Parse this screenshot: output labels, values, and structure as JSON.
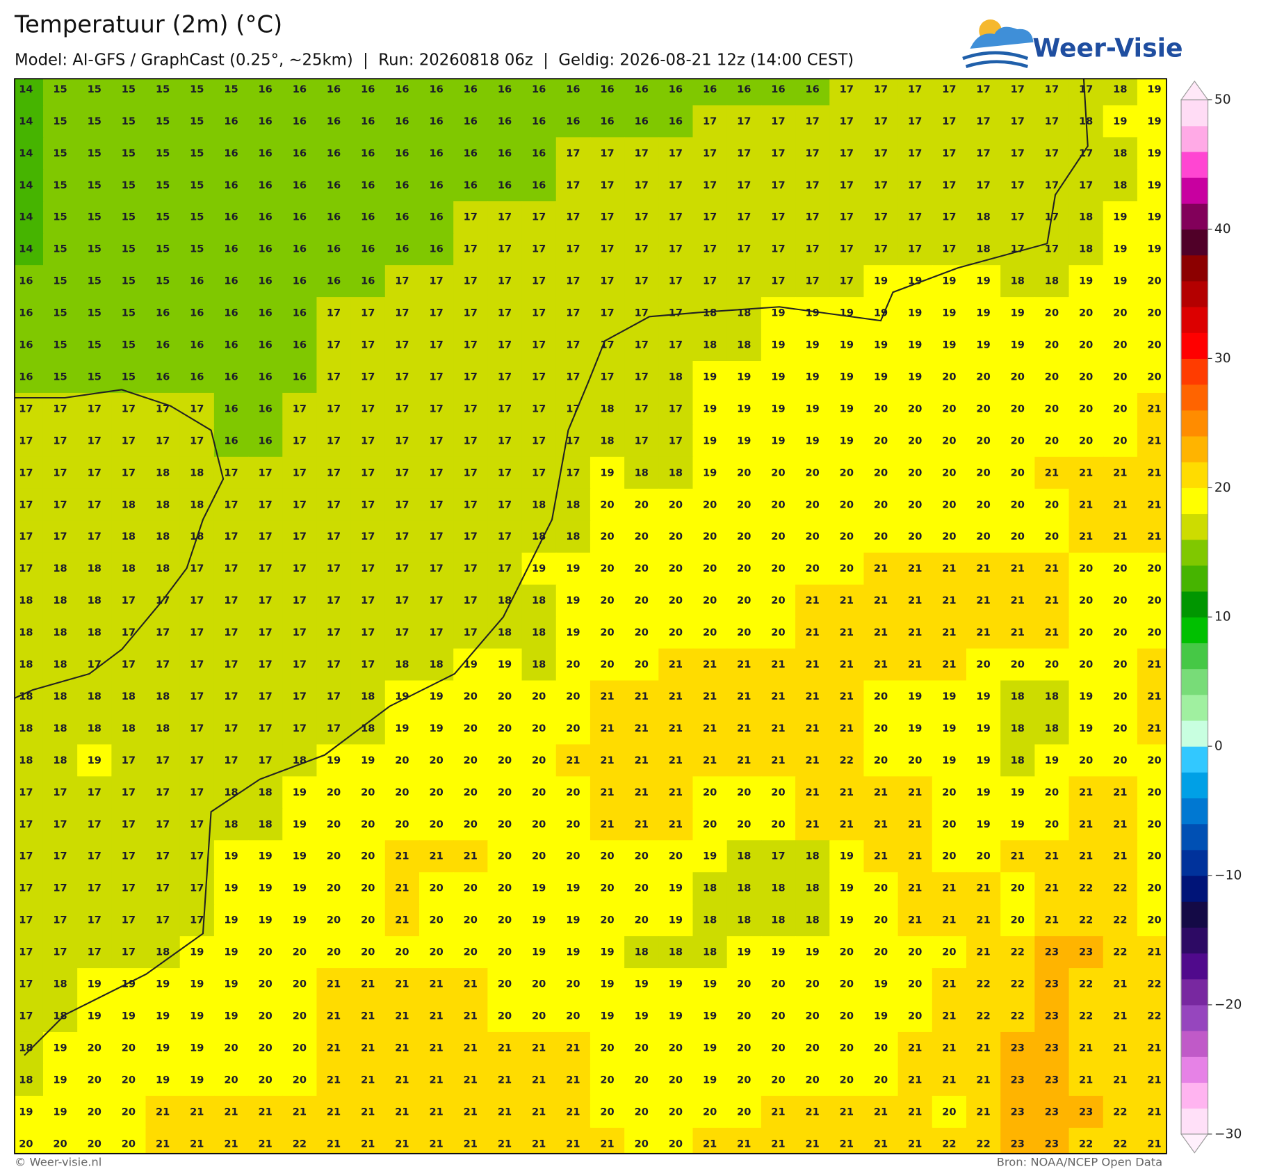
{
  "header": {
    "title": "Temperatuur (2m) (°C)",
    "subtitle": "Model: AI-GFS / GraphCast (0.25°, ~25km)  |  Run: 20260818 06z  |  Geldig: 2026-08-21 12z (14:00 CEST)",
    "logo": "Weer-Visie"
  },
  "map": {
    "grid": [
      [
        14,
        15,
        15,
        15,
        15,
        15,
        15,
        16,
        16,
        16,
        16,
        16,
        16,
        16,
        16,
        16,
        16,
        16,
        16,
        16,
        16,
        16,
        16,
        16,
        17,
        17,
        17,
        17,
        17,
        17,
        17,
        17,
        18,
        19
      ],
      [
        14,
        15,
        15,
        15,
        15,
        15,
        16,
        16,
        16,
        16,
        16,
        16,
        16,
        16,
        16,
        16,
        16,
        16,
        16,
        16,
        17,
        17,
        17,
        17,
        17,
        17,
        17,
        17,
        17,
        17,
        17,
        18,
        19,
        19
      ],
      [
        14,
        15,
        15,
        15,
        15,
        15,
        16,
        16,
        16,
        16,
        16,
        16,
        16,
        16,
        16,
        16,
        17,
        17,
        17,
        17,
        17,
        17,
        17,
        17,
        17,
        17,
        17,
        17,
        17,
        17,
        17,
        17,
        18,
        19
      ],
      [
        14,
        15,
        15,
        15,
        15,
        15,
        16,
        16,
        16,
        16,
        16,
        16,
        16,
        16,
        16,
        16,
        17,
        17,
        17,
        17,
        17,
        17,
        17,
        17,
        17,
        17,
        17,
        17,
        17,
        17,
        17,
        17,
        18,
        19
      ],
      [
        14,
        15,
        15,
        15,
        15,
        15,
        16,
        16,
        16,
        16,
        16,
        16,
        16,
        17,
        17,
        17,
        17,
        17,
        17,
        17,
        17,
        17,
        17,
        17,
        17,
        17,
        17,
        17,
        18,
        17,
        17,
        18,
        19,
        19
      ],
      [
        14,
        15,
        15,
        15,
        15,
        15,
        16,
        16,
        16,
        16,
        16,
        16,
        16,
        17,
        17,
        17,
        17,
        17,
        17,
        17,
        17,
        17,
        17,
        17,
        17,
        17,
        17,
        17,
        18,
        17,
        17,
        18,
        19,
        19
      ],
      [
        16,
        15,
        15,
        15,
        15,
        16,
        16,
        16,
        16,
        16,
        16,
        17,
        17,
        17,
        17,
        17,
        17,
        17,
        17,
        17,
        17,
        17,
        17,
        17,
        17,
        19,
        19,
        19,
        19,
        18,
        18,
        19,
        19,
        20
      ],
      [
        16,
        15,
        15,
        15,
        16,
        16,
        16,
        16,
        16,
        17,
        17,
        17,
        17,
        17,
        17,
        17,
        17,
        17,
        17,
        17,
        18,
        18,
        19,
        19,
        19,
        19,
        19,
        19,
        19,
        19,
        20,
        20,
        20,
        20
      ],
      [
        16,
        15,
        15,
        15,
        16,
        16,
        16,
        16,
        16,
        17,
        17,
        17,
        17,
        17,
        17,
        17,
        17,
        17,
        17,
        17,
        18,
        18,
        19,
        19,
        19,
        19,
        19,
        19,
        19,
        19,
        20,
        20,
        20,
        20
      ],
      [
        16,
        15,
        15,
        15,
        16,
        16,
        16,
        16,
        16,
        17,
        17,
        17,
        17,
        17,
        17,
        17,
        17,
        17,
        17,
        18,
        19,
        19,
        19,
        19,
        19,
        19,
        19,
        20,
        20,
        20,
        20,
        20,
        20,
        20
      ],
      [
        17,
        17,
        17,
        17,
        17,
        17,
        16,
        16,
        17,
        17,
        17,
        17,
        17,
        17,
        17,
        17,
        17,
        18,
        17,
        17,
        19,
        19,
        19,
        19,
        19,
        20,
        20,
        20,
        20,
        20,
        20,
        20,
        20,
        21
      ],
      [
        17,
        17,
        17,
        17,
        17,
        17,
        16,
        16,
        17,
        17,
        17,
        17,
        17,
        17,
        17,
        17,
        17,
        18,
        17,
        17,
        19,
        19,
        19,
        19,
        19,
        20,
        20,
        20,
        20,
        20,
        20,
        20,
        20,
        21
      ],
      [
        17,
        17,
        17,
        17,
        18,
        18,
        17,
        17,
        17,
        17,
        17,
        17,
        17,
        17,
        17,
        17,
        17,
        19,
        18,
        18,
        19,
        20,
        20,
        20,
        20,
        20,
        20,
        20,
        20,
        20,
        21,
        21,
        21,
        21
      ],
      [
        17,
        17,
        17,
        18,
        18,
        18,
        17,
        17,
        17,
        17,
        17,
        17,
        17,
        17,
        17,
        18,
        18,
        20,
        20,
        20,
        20,
        20,
        20,
        20,
        20,
        20,
        20,
        20,
        20,
        20,
        20,
        21,
        21,
        21
      ],
      [
        17,
        17,
        17,
        18,
        18,
        18,
        17,
        17,
        17,
        17,
        17,
        17,
        17,
        17,
        17,
        18,
        18,
        20,
        20,
        20,
        20,
        20,
        20,
        20,
        20,
        20,
        20,
        20,
        20,
        20,
        20,
        21,
        21,
        21
      ],
      [
        17,
        18,
        18,
        18,
        18,
        17,
        17,
        17,
        17,
        17,
        17,
        17,
        17,
        17,
        17,
        19,
        19,
        20,
        20,
        20,
        20,
        20,
        20,
        20,
        20,
        21,
        21,
        21,
        21,
        21,
        21,
        20,
        20,
        20
      ],
      [
        18,
        18,
        18,
        17,
        17,
        17,
        17,
        17,
        17,
        17,
        17,
        17,
        17,
        17,
        18,
        18,
        19,
        20,
        20,
        20,
        20,
        20,
        20,
        21,
        21,
        21,
        21,
        21,
        21,
        21,
        21,
        20,
        20,
        20
      ],
      [
        18,
        18,
        18,
        17,
        17,
        17,
        17,
        17,
        17,
        17,
        17,
        17,
        17,
        17,
        18,
        18,
        19,
        20,
        20,
        20,
        20,
        20,
        20,
        21,
        21,
        21,
        21,
        21,
        21,
        21,
        21,
        20,
        20,
        20
      ],
      [
        18,
        18,
        17,
        17,
        17,
        17,
        17,
        17,
        17,
        17,
        17,
        18,
        18,
        19,
        19,
        18,
        20,
        20,
        20,
        21,
        21,
        21,
        21,
        21,
        21,
        21,
        21,
        21,
        20,
        20,
        20,
        20,
        20,
        21
      ],
      [
        18,
        18,
        18,
        18,
        18,
        17,
        17,
        17,
        17,
        17,
        18,
        19,
        19,
        20,
        20,
        20,
        20,
        21,
        21,
        21,
        21,
        21,
        21,
        21,
        21,
        20,
        19,
        19,
        19,
        18,
        18,
        19,
        20,
        21
      ],
      [
        18,
        18,
        18,
        18,
        18,
        17,
        17,
        17,
        17,
        17,
        18,
        19,
        19,
        20,
        20,
        20,
        20,
        21,
        21,
        21,
        21,
        21,
        21,
        21,
        21,
        20,
        19,
        19,
        19,
        18,
        18,
        19,
        20,
        21
      ],
      [
        18,
        18,
        19,
        17,
        17,
        17,
        17,
        17,
        18,
        19,
        19,
        20,
        20,
        20,
        20,
        20,
        21,
        21,
        21,
        21,
        21,
        21,
        21,
        21,
        22,
        20,
        20,
        19,
        19,
        18,
        19,
        20,
        20,
        20
      ],
      [
        17,
        17,
        17,
        17,
        17,
        17,
        18,
        18,
        19,
        20,
        20,
        20,
        20,
        20,
        20,
        20,
        20,
        21,
        21,
        21,
        20,
        20,
        20,
        21,
        21,
        21,
        21,
        20,
        19,
        19,
        20,
        21,
        21,
        20
      ],
      [
        17,
        17,
        17,
        17,
        17,
        17,
        18,
        18,
        19,
        20,
        20,
        20,
        20,
        20,
        20,
        20,
        20,
        21,
        21,
        21,
        20,
        20,
        20,
        21,
        21,
        21,
        21,
        20,
        19,
        19,
        20,
        21,
        21,
        20
      ],
      [
        17,
        17,
        17,
        17,
        17,
        17,
        19,
        19,
        19,
        20,
        20,
        21,
        21,
        21,
        20,
        20,
        20,
        20,
        20,
        20,
        19,
        18,
        17,
        18,
        19,
        21,
        21,
        20,
        20,
        21,
        21,
        21,
        21,
        20
      ],
      [
        17,
        17,
        17,
        17,
        17,
        17,
        19,
        19,
        19,
        20,
        20,
        21,
        20,
        20,
        20,
        19,
        19,
        20,
        20,
        19,
        18,
        18,
        18,
        18,
        19,
        20,
        21,
        21,
        21,
        20,
        21,
        22,
        22,
        20
      ],
      [
        17,
        17,
        17,
        17,
        17,
        17,
        19,
        19,
        19,
        20,
        20,
        21,
        20,
        20,
        20,
        19,
        19,
        20,
        20,
        19,
        18,
        18,
        18,
        18,
        19,
        20,
        21,
        21,
        21,
        20,
        21,
        22,
        22,
        20
      ],
      [
        17,
        17,
        17,
        17,
        18,
        19,
        19,
        20,
        20,
        20,
        20,
        20,
        20,
        20,
        20,
        19,
        19,
        19,
        18,
        18,
        18,
        19,
        19,
        19,
        20,
        20,
        20,
        20,
        21,
        22,
        23,
        23,
        22,
        21
      ],
      [
        17,
        18,
        19,
        19,
        19,
        19,
        19,
        20,
        20,
        21,
        21,
        21,
        21,
        21,
        20,
        20,
        20,
        19,
        19,
        19,
        19,
        20,
        20,
        20,
        20,
        19,
        20,
        21,
        22,
        22,
        23,
        22,
        21,
        22
      ],
      [
        17,
        18,
        19,
        19,
        19,
        19,
        19,
        20,
        20,
        21,
        21,
        21,
        21,
        21,
        20,
        20,
        20,
        19,
        19,
        19,
        19,
        20,
        20,
        20,
        20,
        19,
        20,
        21,
        22,
        22,
        23,
        22,
        21,
        22
      ],
      [
        18,
        19,
        20,
        20,
        19,
        19,
        20,
        20,
        20,
        21,
        21,
        21,
        21,
        21,
        21,
        21,
        21,
        20,
        20,
        20,
        19,
        20,
        20,
        20,
        20,
        20,
        21,
        21,
        21,
        23,
        23,
        21,
        21,
        21
      ],
      [
        18,
        19,
        20,
        20,
        19,
        19,
        20,
        20,
        20,
        21,
        21,
        21,
        21,
        21,
        21,
        21,
        21,
        20,
        20,
        20,
        19,
        20,
        20,
        20,
        20,
        20,
        21,
        21,
        21,
        23,
        23,
        21,
        21,
        21
      ],
      [
        19,
        19,
        20,
        20,
        21,
        21,
        21,
        21,
        21,
        21,
        21,
        21,
        21,
        21,
        21,
        21,
        21,
        20,
        20,
        20,
        20,
        20,
        21,
        21,
        21,
        21,
        21,
        20,
        21,
        23,
        23,
        23,
        22,
        21
      ],
      [
        20,
        20,
        20,
        20,
        21,
        21,
        21,
        21,
        22,
        21,
        21,
        21,
        21,
        21,
        21,
        21,
        21,
        21,
        20,
        20,
        21,
        21,
        21,
        21,
        21,
        21,
        21,
        22,
        22,
        23,
        23,
        22,
        22,
        21
      ]
    ]
  },
  "colorbar": {
    "lim": [
      -30,
      50
    ],
    "ticks": [
      50,
      40,
      30,
      20,
      10,
      0,
      {
        "value": -10,
        "label": "−10"
      },
      {
        "value": -20,
        "label": "−20"
      },
      {
        "value": -30,
        "label": "−30"
      }
    ],
    "colors": [
      "#ffe0f8",
      "#ffb4f0",
      "#e682e6",
      "#c05ac8",
      "#9646be",
      "#7828a0",
      "#500a8c",
      "#2d0a64",
      "#140a46",
      "#001478",
      "#00329b",
      "#0050b4",
      "#0078d2",
      "#00a0e6",
      "#32c8ff",
      "#c8ffe0",
      "#a0f0a0",
      "#78dc78",
      "#46c846",
      "#00c000",
      "#009600",
      "#46b400",
      "#80c800",
      "#cddc00",
      "#ffff00",
      "#ffdc00",
      "#ffb400",
      "#ff8c00",
      "#ff6400",
      "#ff3c00",
      "#ff0000",
      "#dc0000",
      "#b40000",
      "#8c0000",
      "#500028",
      "#82005a",
      "#c800a0",
      "#ff46d2",
      "#ffaae6",
      "#ffdcf5"
    ],
    "over_color": "#ffe8f8",
    "under_color": "#fff0fc"
  },
  "footer": {
    "left": "© Weer-visie.nl",
    "right": "Bron: NOAA/NCEP Open Data"
  }
}
